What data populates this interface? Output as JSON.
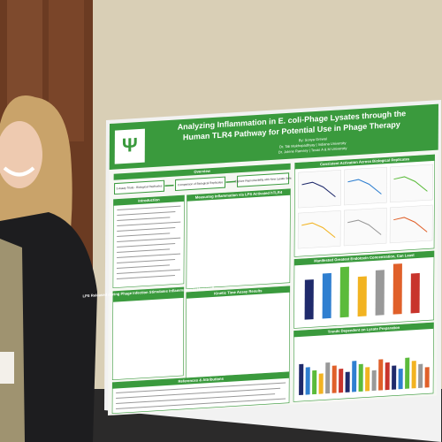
{
  "poster": {
    "title_lines": [
      "Analyzing Inflammation in E. coli-Phage Lysates through the",
      "Human TLR4 Pathway for Potential Use in Phage Therapy"
    ],
    "authors": [
      "By: Sonya Grewal",
      "Dr. Tali Mukhopadhyay | Indiana University",
      "Dr. Jolene Ramsey | Texas A & M University"
    ],
    "overview": {
      "heading": "Overview",
      "steps": [
        "5 Assay Trials - Biological Replicates",
        "Comparison of Biological Replicates",
        "Explore Reproducibility with New Lysate Sets"
      ]
    },
    "sections": [
      "Introduction",
      "Measuring Inflammation via LPS Activated hTLR4",
      "LPS Released during Phage Infection Stimulates Inflammation in Humans?",
      "Kinetic Time Assay Results",
      "References & Attributions",
      "Consistent Activation Across Biological Replicates",
      "Manifested Greatest Endotoxin Concentration, Can Least",
      "Trends Dependent on Lysate Preparation"
    ]
  }
}
